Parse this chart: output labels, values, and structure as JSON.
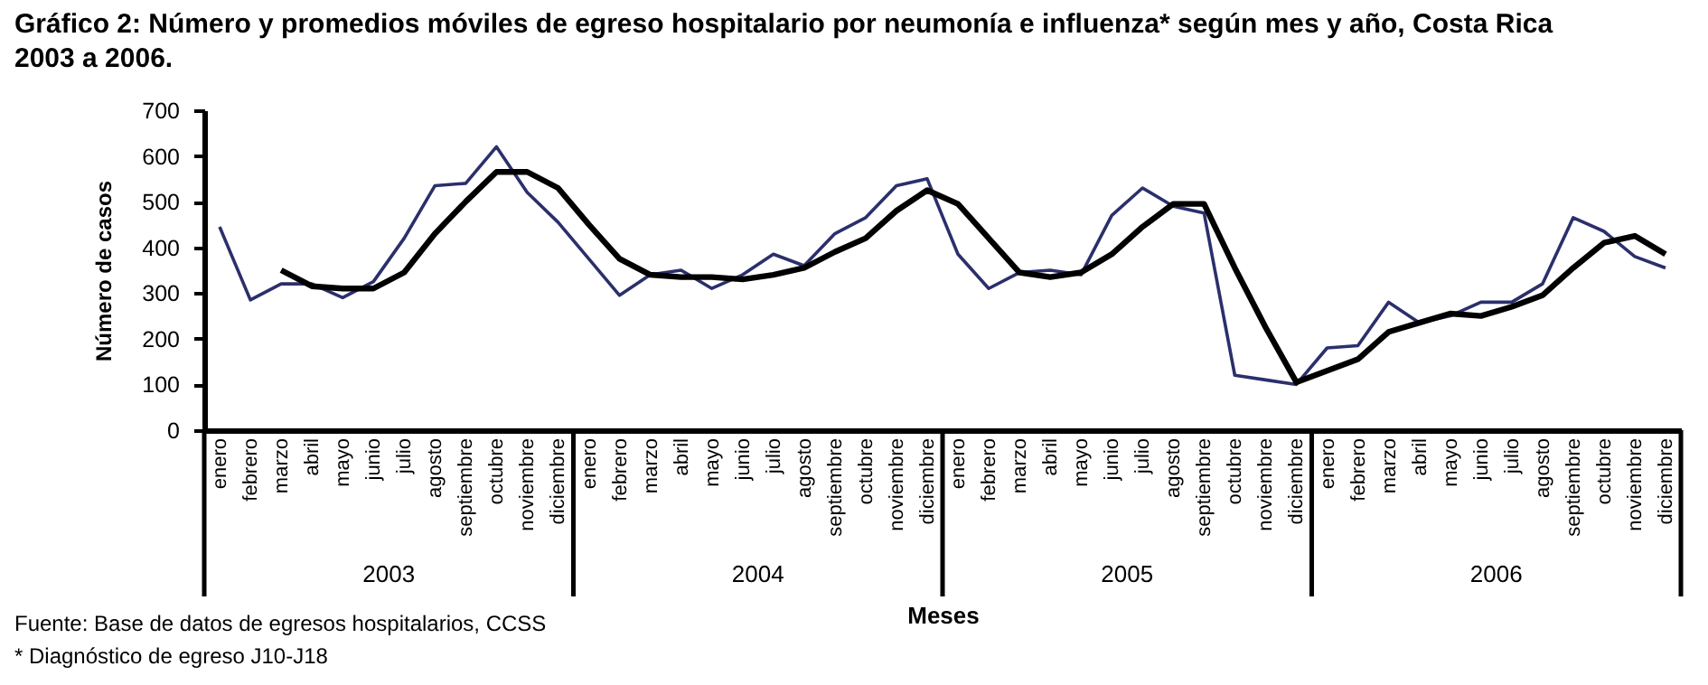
{
  "chart_data": {
    "type": "line",
    "title": "Gráfico 2: Número y promedios móviles de egreso hospitalario por neumonía e influenza* según mes y año, Costa Rica 2003 a 2006.",
    "xlabel": "Meses",
    "ylabel": "Número de casos",
    "categories": [
      "enero",
      "febrero",
      "marzo",
      "abril",
      "mayo",
      "junio",
      "julio",
      "agosto",
      "septiembre",
      "octubre",
      "noviembre",
      "diciembre",
      "enero",
      "febrero",
      "marzo",
      "abril",
      "mayo",
      "junio",
      "julio",
      "agosto",
      "septiembre",
      "octubre",
      "noviembre",
      "diciembre",
      "enero",
      "febrero",
      "marzo",
      "abril",
      "mayo",
      "junio",
      "julio",
      "agosto",
      "septiembre",
      "octubre",
      "noviembre",
      "diciembre",
      "enero",
      "febrero",
      "marzo",
      "abril",
      "mayo",
      "junio",
      "julio",
      "agosto",
      "septiembre",
      "octubre",
      "noviembre",
      "diciembre"
    ],
    "series": [
      {
        "color": "#2b2f6b",
        "values": [
          445,
          285,
          320,
          320,
          290,
          325,
          420,
          535,
          540,
          620,
          520,
          455,
          375,
          295,
          340,
          350,
          310,
          340,
          385,
          360,
          430,
          465,
          535,
          550,
          385,
          310,
          345,
          350,
          340,
          470,
          530,
          490,
          475,
          120,
          110,
          100,
          180,
          185,
          280,
          235,
          250,
          280,
          280,
          320,
          465,
          435,
          380,
          355
        ]
      },
      {
        "color": "#000000",
        "values": [
          null,
          null,
          350,
          315,
          310,
          310,
          345,
          430,
          500,
          565,
          565,
          530,
          450,
          375,
          340,
          335,
          335,
          330,
          340,
          355,
          390,
          420,
          480,
          525,
          495,
          420,
          345,
          335,
          345,
          385,
          445,
          495,
          495,
          355,
          225,
          105,
          130,
          155,
          215,
          235,
          255,
          250,
          270,
          295,
          355,
          410,
          425,
          385
        ]
      }
    ],
    "ylim": [
      0,
      700
    ],
    "yticks": [
      0,
      100,
      200,
      300,
      400,
      500,
      600,
      700
    ],
    "annotations": [
      "2003",
      "2004",
      "2005",
      "2006",
      "Fuente: Base de datos de egresos hospitalarios, CCSS",
      "* Diagnóstico de egreso J10-J18"
    ]
  }
}
